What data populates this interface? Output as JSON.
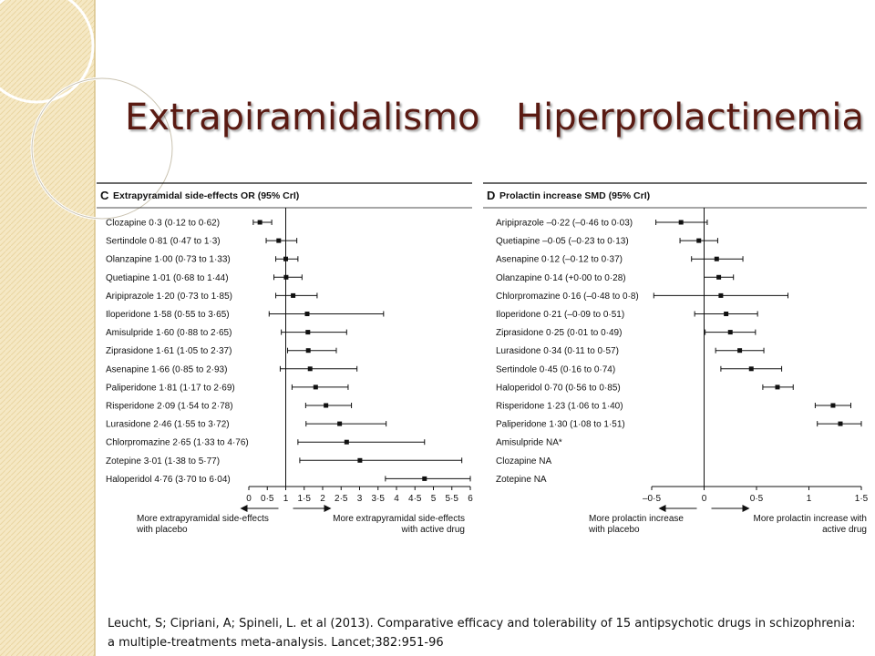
{
  "slide": {
    "title_left": "Extrapiramidalismo",
    "title_right": "Hiperprolactinemia",
    "citation": "Leucht, S; Cipriani, A; Spineli, L. et al (2013). Comparative efficacy and tolerability of 15   antipsychotic drugs in schizophrenia: a multiple-treatments meta-analysis. Lancet;382:951-96"
  },
  "colors": {
    "title": "#5a1a12",
    "background_stripe": "#f5e8c4",
    "chart_ink": "#111111"
  },
  "chart_data": [
    {
      "type": "forest",
      "panel_letter": "C",
      "title": "Extrapyramidal side-effects OR (95% CrI)",
      "reference_value": 1,
      "xlim": [
        0,
        6
      ],
      "ticks": [
        "0",
        "0·5",
        "1",
        "1·5",
        "2",
        "2·5",
        "3",
        "3·5",
        "4",
        "4·5",
        "5",
        "5·5",
        "6"
      ],
      "tick_values": [
        0,
        0.5,
        1,
        1.5,
        2,
        2.5,
        3,
        3.5,
        4,
        4.5,
        5,
        5.5,
        6
      ],
      "left_arrow_label": [
        "More extrapyramidal side-effects",
        "with placebo"
      ],
      "right_arrow_label": [
        "More extrapyramidal side-effects",
        "with active drug"
      ],
      "rows": [
        {
          "label": "Clozapine 0·3 (0·12 to 0·62)",
          "est": 0.3,
          "lo": 0.12,
          "hi": 0.62
        },
        {
          "label": "Sertindole 0·81 (0·47 to 1·3)",
          "est": 0.81,
          "lo": 0.47,
          "hi": 1.3
        },
        {
          "label": "Olanzapine 1·00 (0·73 to 1·33)",
          "est": 1.0,
          "lo": 0.73,
          "hi": 1.33
        },
        {
          "label": "Quetiapine 1·01 (0·68 to 1·44)",
          "est": 1.01,
          "lo": 0.68,
          "hi": 1.44
        },
        {
          "label": "Aripiprazole 1·20 (0·73 to 1·85)",
          "est": 1.2,
          "lo": 0.73,
          "hi": 1.85
        },
        {
          "label": "Iloperidone 1·58 (0·55 to 3·65)",
          "est": 1.58,
          "lo": 0.55,
          "hi": 3.65
        },
        {
          "label": "Amisulpride 1·60 (0·88 to 2·65)",
          "est": 1.6,
          "lo": 0.88,
          "hi": 2.65
        },
        {
          "label": "Ziprasidone 1·61 (1·05 to 2·37)",
          "est": 1.61,
          "lo": 1.05,
          "hi": 2.37
        },
        {
          "label": "Asenapine 1·66 (0·85 to 2·93)",
          "est": 1.66,
          "lo": 0.85,
          "hi": 2.93
        },
        {
          "label": "Paliperidone 1·81 (1·17 to 2·69)",
          "est": 1.81,
          "lo": 1.17,
          "hi": 2.69
        },
        {
          "label": "Risperidone 2·09 (1·54 to 2·78)",
          "est": 2.09,
          "lo": 1.54,
          "hi": 2.78
        },
        {
          "label": "Lurasidone 2·46 (1·55 to 3·72)",
          "est": 2.46,
          "lo": 1.55,
          "hi": 3.72
        },
        {
          "label": "Chlorpromazine 2·65 (1·33 to 4·76)",
          "est": 2.65,
          "lo": 1.33,
          "hi": 4.76
        },
        {
          "label": "Zotepine 3·01 (1·38 to 5·77)",
          "est": 3.01,
          "lo": 1.38,
          "hi": 5.77
        },
        {
          "label": "Haloperidol 4·76 (3·70 to 6·04)",
          "est": 4.76,
          "lo": 3.7,
          "hi": 6.04
        }
      ]
    },
    {
      "type": "forest",
      "panel_letter": "D",
      "title": "Prolactin increase SMD (95% CrI)",
      "reference_value": 0,
      "xlim": [
        -0.5,
        1.5
      ],
      "ticks": [
        "–0·5",
        "0",
        "0·5",
        "1",
        "1·5"
      ],
      "tick_values": [
        -0.5,
        0,
        0.5,
        1,
        1.5
      ],
      "left_arrow_label": [
        "More prolactin increase",
        "with placebo"
      ],
      "right_arrow_label": [
        "More prolactin increase with",
        "active drug"
      ],
      "rows": [
        {
          "label": "Aripiprazole –0·22 (–0·46 to 0·03)",
          "est": -0.22,
          "lo": -0.46,
          "hi": 0.03
        },
        {
          "label": "Quetiapine –0·05 (–0·23 to 0·13)",
          "est": -0.05,
          "lo": -0.23,
          "hi": 0.13
        },
        {
          "label": "Asenapine 0·12 (–0·12 to 0·37)",
          "est": 0.12,
          "lo": -0.12,
          "hi": 0.37
        },
        {
          "label": "Olanzapine 0·14 (+0·00 to 0·28)",
          "est": 0.14,
          "lo": 0.0,
          "hi": 0.28
        },
        {
          "label": "Chlorpromazine 0·16 (–0·48 to 0·8)",
          "est": 0.16,
          "lo": -0.48,
          "hi": 0.8
        },
        {
          "label": "Iloperidone 0·21 (–0·09 to 0·51)",
          "est": 0.21,
          "lo": -0.09,
          "hi": 0.51
        },
        {
          "label": "Ziprasidone 0·25 (0·01 to 0·49)",
          "est": 0.25,
          "lo": 0.01,
          "hi": 0.49
        },
        {
          "label": "Lurasidone 0·34 (0·11 to 0·57)",
          "est": 0.34,
          "lo": 0.11,
          "hi": 0.57
        },
        {
          "label": "Sertindole 0·45 (0·16 to 0·74)",
          "est": 0.45,
          "lo": 0.16,
          "hi": 0.74
        },
        {
          "label": "Haloperidol 0·70 (0·56 to 0·85)",
          "est": 0.7,
          "lo": 0.56,
          "hi": 0.85
        },
        {
          "label": "Risperidone 1·23 (1·06 to 1·40)",
          "est": 1.23,
          "lo": 1.06,
          "hi": 1.4
        },
        {
          "label": "Paliperidone 1·30 (1·08 to 1·51)",
          "est": 1.3,
          "lo": 1.08,
          "hi": 1.51
        },
        {
          "label": "Amisulpride NA*",
          "est": null,
          "lo": null,
          "hi": null
        },
        {
          "label": "Clozapine NA",
          "est": null,
          "lo": null,
          "hi": null
        },
        {
          "label": "Zotepine NA",
          "est": null,
          "lo": null,
          "hi": null
        }
      ]
    }
  ]
}
